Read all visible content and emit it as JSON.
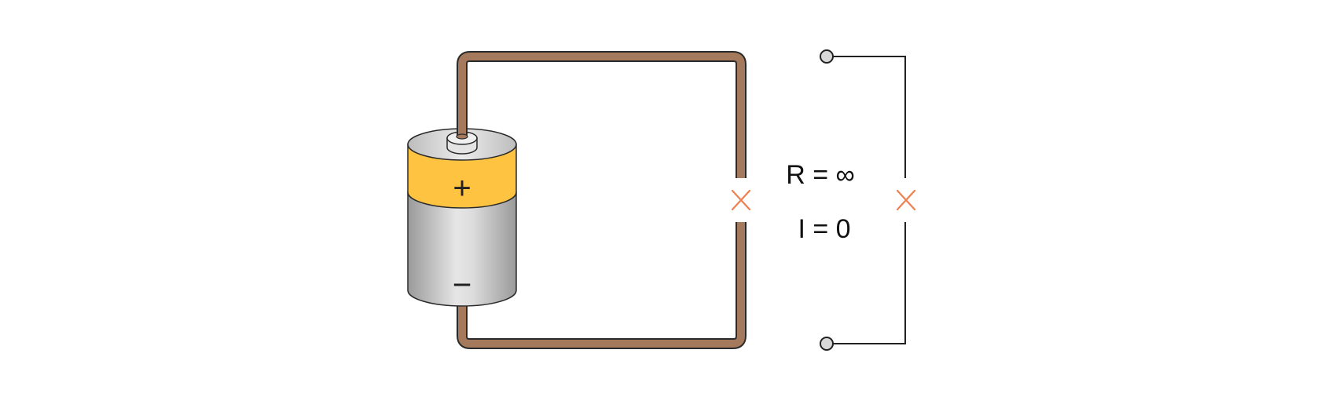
{
  "diagram": {
    "battery": {
      "positive_sign": "+",
      "negative_sign": "−"
    },
    "open_circuit": {
      "resistance_label": "R = ∞",
      "current_label": "I = 0"
    },
    "colors": {
      "wire_fill": "#a57a5c",
      "wire_outline": "#2a2a2a",
      "battery_positive_band": "#ffc342",
      "battery_body_light": "#e6e6e6",
      "battery_body_dark": "#9a9a9a",
      "break_mark": "#ee8050",
      "schematic_line": "#222222",
      "terminal_fill": "#d8d8d8"
    },
    "icons": {
      "break_marker": "cross-icon",
      "terminal": "terminal-circle-icon"
    }
  }
}
